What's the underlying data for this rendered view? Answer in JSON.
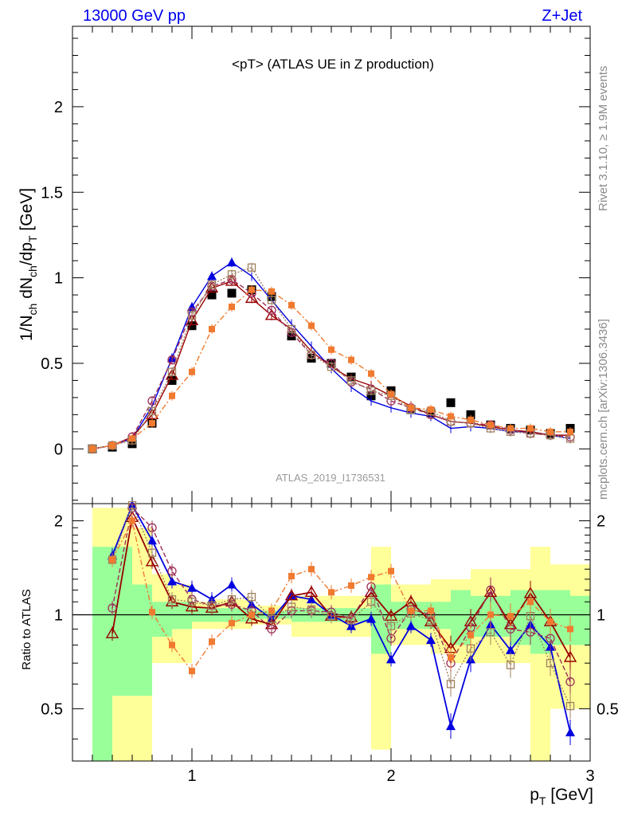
{
  "header": {
    "energy_label": "13000 GeV pp",
    "process_label": "Z+Jet"
  },
  "side_labels": {
    "rivet": "Rivet 3.1.10, ≥ 1.9M events",
    "source": "mcplots.cern.ch [arXiv:1306.3436]"
  },
  "colors": {
    "data": "#000000",
    "blue": "#0000e0",
    "darkred": "#990000",
    "purple": "#9c2f59",
    "brown": "#a08060",
    "orange": "#f07a30",
    "band_inner": "#99ff99",
    "band_outer": "#ffff99"
  },
  "chart_data": [
    {
      "type": "scatter",
      "title": "<pT> (ATLAS UE in Z production)",
      "annotation": "ATLAS_2019_I1736531",
      "xlabel": "",
      "ylabel": "1/N_ch dN_ch/dp_T [GeV]",
      "xlim": [
        0.4,
        3.0
      ],
      "ylim": [
        -0.32,
        2.47
      ],
      "yticks": [
        "0",
        "0.5",
        "1",
        "1.5",
        "2"
      ],
      "grid": false,
      "x": [
        0.5,
        0.6,
        0.7,
        0.8,
        0.9,
        1.0,
        1.1,
        1.2,
        1.3,
        1.4,
        1.5,
        1.6,
        1.7,
        1.8,
        1.9,
        2.0,
        2.1,
        2.2,
        2.3,
        2.4,
        2.5,
        2.6,
        2.7,
        2.8,
        2.9
      ],
      "series": [
        {
          "key": "data",
          "marker": "square",
          "values": [
            0.0,
            0.01,
            0.03,
            0.15,
            0.4,
            0.72,
            0.9,
            0.91,
            0.93,
            0.89,
            0.66,
            0.53,
            0.5,
            0.42,
            0.31,
            0.34,
            0.23,
            0.21,
            0.27,
            0.2,
            0.14,
            0.12,
            0.11,
            0.09,
            0.12
          ]
        },
        {
          "key": "blue",
          "marker": "filled-triangle",
          "values": [
            0.0,
            0.02,
            0.06,
            0.25,
            0.53,
            0.83,
            1.01,
            1.09,
            1.01,
            0.87,
            0.73,
            0.6,
            0.47,
            0.36,
            0.28,
            0.24,
            0.21,
            0.19,
            0.12,
            0.13,
            0.12,
            0.1,
            0.1,
            0.08,
            0.06
          ]
        },
        {
          "key": "darkred",
          "marker": "open-triangle",
          "values": [
            0.0,
            0.02,
            0.07,
            0.2,
            0.43,
            0.75,
            0.94,
            0.98,
            0.88,
            0.78,
            0.7,
            0.57,
            0.48,
            0.41,
            0.37,
            0.31,
            0.25,
            0.2,
            0.16,
            0.15,
            0.13,
            0.11,
            0.1,
            0.08,
            0.08
          ]
        },
        {
          "key": "purple",
          "marker": "open-circle",
          "values": [
            0.0,
            0.02,
            0.07,
            0.28,
            0.52,
            0.8,
            0.95,
            0.99,
            0.91,
            0.81,
            0.68,
            0.55,
            0.5,
            0.39,
            0.35,
            0.28,
            0.24,
            0.2,
            0.16,
            0.15,
            0.14,
            0.11,
            0.09,
            0.08,
            0.07
          ]
        },
        {
          "key": "brown",
          "marker": "open-square",
          "values": [
            0.0,
            0.02,
            0.05,
            0.22,
            0.45,
            0.78,
            0.96,
            1.02,
            1.06,
            0.87,
            0.7,
            0.55,
            0.48,
            0.4,
            0.34,
            0.31,
            0.23,
            0.22,
            0.16,
            0.15,
            0.12,
            0.1,
            0.09,
            0.08,
            0.06
          ]
        },
        {
          "key": "orange",
          "marker": "filled-square-small",
          "values": [
            0.0,
            0.02,
            0.06,
            0.15,
            0.31,
            0.45,
            0.7,
            0.83,
            0.93,
            0.92,
            0.84,
            0.72,
            0.58,
            0.52,
            0.44,
            0.32,
            0.24,
            0.23,
            0.19,
            0.17,
            0.14,
            0.12,
            0.12,
            0.1,
            0.1
          ]
        }
      ]
    },
    {
      "type": "scatter",
      "xlabel": "p_T [GeV]",
      "ylabel": "Ratio to ATLAS",
      "xlim": [
        0.4,
        3.0
      ],
      "ylim": [
        0.34,
        2.27
      ],
      "xticks": [
        "1",
        "2",
        "3"
      ],
      "yticks": [
        "0.5",
        "1",
        "2"
      ],
      "reference_line": 1,
      "band_x": [
        0.55,
        0.65,
        0.75,
        0.85,
        0.95,
        1.05,
        1.15,
        1.25,
        1.35,
        1.45,
        1.55,
        1.65,
        1.75,
        1.85,
        1.95,
        2.05,
        2.15,
        2.25,
        2.35,
        2.45,
        2.55,
        2.65,
        2.75,
        2.85,
        2.95
      ],
      "band_inner": [
        [
          0.3,
          1.65
        ],
        [
          0.55,
          1.65
        ],
        [
          0.55,
          1.25
        ],
        [
          0.85,
          1.1
        ],
        [
          0.9,
          1.1
        ],
        [
          0.95,
          1.05
        ],
        [
          0.95,
          1.05
        ],
        [
          0.95,
          1.05
        ],
        [
          0.97,
          1.03
        ],
        [
          0.97,
          1.03
        ],
        [
          0.95,
          1.05
        ],
        [
          0.95,
          1.05
        ],
        [
          0.95,
          1.05
        ],
        [
          0.95,
          1.05
        ],
        [
          0.75,
          1.25
        ],
        [
          0.9,
          1.1
        ],
        [
          0.9,
          1.1
        ],
        [
          0.9,
          1.1
        ],
        [
          0.8,
          1.2
        ],
        [
          0.85,
          1.15
        ],
        [
          0.85,
          1.15
        ],
        [
          0.8,
          1.2
        ],
        [
          0.75,
          1.2
        ],
        [
          0.8,
          1.2
        ],
        [
          0.8,
          1.15
        ]
      ],
      "band_outer": [
        [
          0.3,
          2.2
        ],
        [
          0.3,
          2.2
        ],
        [
          0.3,
          1.9
        ],
        [
          0.7,
          1.35
        ],
        [
          0.7,
          1.25
        ],
        [
          0.9,
          1.1
        ],
        [
          0.9,
          1.12
        ],
        [
          0.9,
          1.12
        ],
        [
          0.93,
          1.07
        ],
        [
          0.93,
          1.07
        ],
        [
          0.85,
          1.15
        ],
        [
          0.85,
          1.15
        ],
        [
          0.85,
          1.15
        ],
        [
          0.85,
          1.15
        ],
        [
          0.37,
          1.65
        ],
        [
          0.8,
          1.25
        ],
        [
          0.8,
          1.25
        ],
        [
          0.75,
          1.3
        ],
        [
          0.7,
          1.3
        ],
        [
          0.7,
          1.4
        ],
        [
          0.7,
          1.4
        ],
        [
          0.7,
          1.4
        ],
        [
          0.3,
          1.65
        ],
        [
          0.5,
          1.45
        ],
        [
          0.5,
          1.45
        ]
      ],
      "series": [
        {
          "key": "blue",
          "values": [
            null,
            1.55,
            2.35,
            1.73,
            1.28,
            1.22,
            1.12,
            1.25,
            1.08,
            0.97,
            1.15,
            1.12,
            1.0,
            0.92,
            0.97,
            0.72,
            0.92,
            0.83,
            0.44,
            0.72,
            0.93,
            0.77,
            0.93,
            0.79,
            0.42
          ]
        },
        {
          "key": "darkred",
          "values": [
            null,
            0.87,
            2.05,
            1.48,
            1.1,
            1.06,
            1.05,
            1.1,
            0.97,
            0.93,
            1.15,
            1.18,
            0.99,
            0.98,
            1.18,
            0.99,
            1.1,
            0.95,
            0.78,
            0.95,
            1.18,
            0.93,
            1.17,
            0.95,
            0.73
          ]
        },
        {
          "key": "purple",
          "values": [
            null,
            1.05,
            2.2,
            1.9,
            1.38,
            1.12,
            1.07,
            1.08,
            1.03,
            0.9,
            1.03,
            1.03,
            1.02,
            0.97,
            1.23,
            0.84,
            1.04,
            1.0,
            0.7,
            0.91,
            1.2,
            0.9,
            0.88,
            0.84,
            0.61
          ]
        },
        {
          "key": "brown",
          "values": [
            null,
            1.5,
            2.27,
            1.58,
            1.12,
            1.1,
            1.07,
            1.12,
            1.14,
            0.97,
            1.06,
            1.04,
            0.99,
            0.96,
            1.1,
            0.92,
            1.01,
            0.96,
            0.6,
            0.78,
            0.88,
            0.69,
            0.99,
            0.7,
            0.51
          ]
        },
        {
          "key": "orange",
          "values": [
            null,
            1.5,
            2.0,
            1.02,
            0.8,
            0.66,
            0.82,
            0.94,
            1.0,
            1.03,
            1.33,
            1.4,
            1.18,
            1.24,
            1.32,
            1.38,
            1.03,
            1.03,
            0.73,
            0.86,
            1.0,
            0.99,
            1.1,
            0.95,
            0.9
          ]
        }
      ]
    }
  ]
}
